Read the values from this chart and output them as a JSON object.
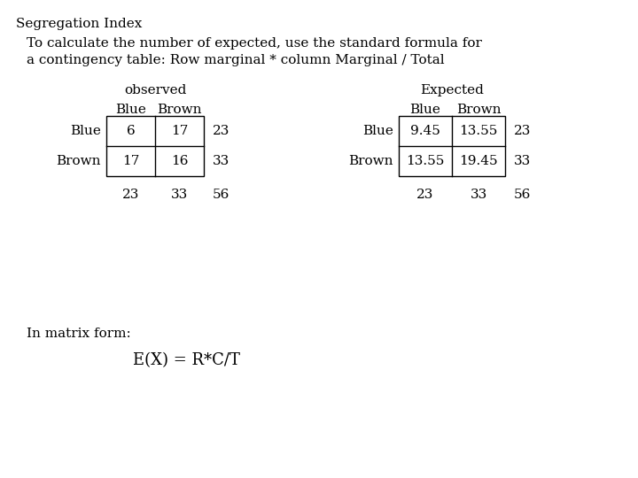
{
  "title": "Segregation Index",
  "subtitle_line1": "To calculate the number of expected, use the standard formula for",
  "subtitle_line2": "a contingency table: Row marginal * column Marginal / Total",
  "obs_label": "observed",
  "exp_label": "Expected",
  "row_headers": [
    "Blue",
    "Brown"
  ],
  "obs_data": [
    [
      "6",
      "17"
    ],
    [
      "17",
      "16"
    ]
  ],
  "exp_data": [
    [
      "9.45",
      "13.55"
    ],
    [
      "13.55",
      "19.45"
    ]
  ],
  "row_totals": [
    "23",
    "33"
  ],
  "col_totals": [
    "23",
    "33"
  ],
  "grand_total": "56",
  "matrix_label": "In matrix form:",
  "formula": "E(X) = R*C/T",
  "bg_color": "#ffffff",
  "text_color": "#000000",
  "font_size_title": 11,
  "font_size_subtitle": 11,
  "font_size_label": 11,
  "font_size_cell": 11,
  "font_size_formula": 13
}
